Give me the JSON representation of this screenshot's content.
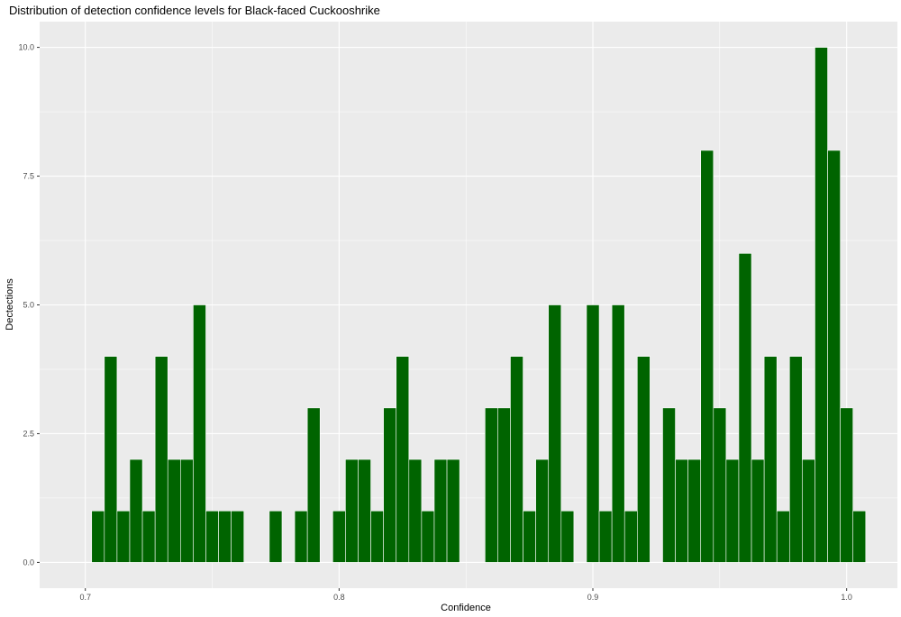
{
  "chart_data": {
    "type": "bar",
    "title": "Distribution of detection confidence levels for Black-faced Cuckooshrike",
    "xlabel": "Confidence",
    "ylabel": "Dectections",
    "xlim": [
      0.682,
      1.02
    ],
    "ylim": [
      -0.5,
      10.5
    ],
    "x_ticks": [
      0.7,
      0.8,
      0.9,
      1.0
    ],
    "x_tick_labels": [
      "0.7",
      "0.8",
      "0.9",
      "1.0"
    ],
    "y_ticks": [
      0,
      2.5,
      5,
      7.5,
      10
    ],
    "y_tick_labels": [
      "0.0",
      "2.5",
      "5.0",
      "7.5",
      "10.0"
    ],
    "bin_start": 0.7025,
    "bin_width": 0.005,
    "values": [
      1,
      4,
      1,
      2,
      1,
      4,
      2,
      2,
      5,
      1,
      1,
      1,
      0,
      0,
      1,
      0,
      1,
      3,
      0,
      1,
      2,
      2,
      1,
      3,
      4,
      2,
      1,
      2,
      2,
      0,
      0,
      3,
      3,
      4,
      1,
      2,
      5,
      1,
      0,
      5,
      1,
      5,
      1,
      4,
      0,
      3,
      2,
      2,
      8,
      3,
      2,
      6,
      2,
      4,
      1,
      4,
      2,
      10,
      8,
      3,
      1
    ],
    "grid": true,
    "legend": "none",
    "colors": {
      "bar_fill": "#006400",
      "bar_outline": "#ffffff",
      "panel_background": "#ebebeb",
      "grid_major": "#ffffff"
    }
  }
}
